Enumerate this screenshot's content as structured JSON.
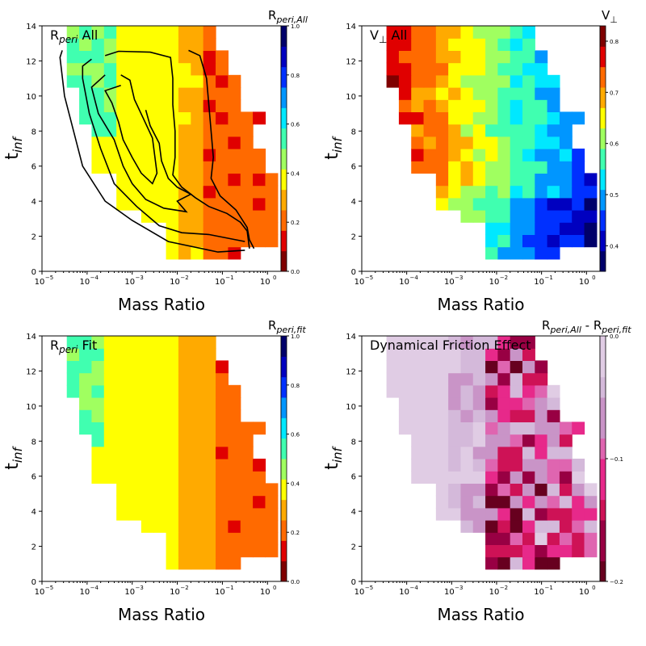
{
  "chart_data": [
    {
      "type": "heatmap",
      "panel": "top-left",
      "title_main": "R",
      "title_sub": "peri",
      "title_suffix": " All",
      "colorbar_label_main": "R",
      "colorbar_label_sub": "peri,All",
      "colorbar_ticks": [
        "0.0",
        "0.2",
        "0.4",
        "0.6",
        "0.8",
        "1.0"
      ],
      "colorbar_range": [
        0,
        1
      ],
      "colormap": "jet",
      "contours": true,
      "xlabel": "Mass Ratio",
      "ylabel_main": "t",
      "ylabel_sub": "inf",
      "x_ticks": [
        "10",
        "10",
        "10",
        "10",
        "10",
        "10"
      ],
      "x_tick_exponents": [
        "−5",
        "−4",
        "−3",
        "−2",
        "−1",
        "0"
      ],
      "y_ticks": [
        "0",
        "2",
        "4",
        "6",
        "8",
        "10",
        "12",
        "14"
      ],
      "x_log_range": [
        -5,
        0.3
      ],
      "y_range": [
        0,
        14
      ]
    },
    {
      "type": "heatmap",
      "panel": "top-right",
      "title_main": "V",
      "title_sub": "⊥",
      "title_suffix": "  All",
      "colorbar_label_main": "V",
      "colorbar_label_sub": "⊥",
      "colorbar_ticks": [
        "0.4",
        "0.5",
        "0.6",
        "0.7",
        "0.8"
      ],
      "colorbar_range": [
        0.35,
        0.83
      ],
      "colormap": "jet_r",
      "contours": false,
      "xlabel": "Mass Ratio",
      "ylabel_main": "t",
      "ylabel_sub": "inf",
      "x_ticks": [
        "10",
        "10",
        "10",
        "10",
        "10",
        "10"
      ],
      "x_tick_exponents": [
        "−5",
        "−4",
        "−3",
        "−2",
        "−1",
        "0"
      ],
      "y_ticks": [
        "0",
        "2",
        "4",
        "6",
        "8",
        "10",
        "12",
        "14"
      ],
      "x_log_range": [
        -5,
        0.3
      ],
      "y_range": [
        0,
        14
      ]
    },
    {
      "type": "heatmap",
      "panel": "bottom-left",
      "title_main": "R",
      "title_sub": "peri",
      "title_suffix": " Fit",
      "colorbar_label_main": "R",
      "colorbar_label_sub": "peri,fit",
      "colorbar_ticks": [
        "0.0",
        "0.2",
        "0.4",
        "0.6",
        "0.8",
        "1.0"
      ],
      "colorbar_range": [
        0,
        1
      ],
      "colormap": "jet",
      "contours": false,
      "xlabel": "Mass Ratio",
      "ylabel_main": "t",
      "ylabel_sub": "inf",
      "x_ticks": [
        "10",
        "10",
        "10",
        "10",
        "10",
        "10"
      ],
      "x_tick_exponents": [
        "−5",
        "−4",
        "−3",
        "−2",
        "−1",
        "0"
      ],
      "y_ticks": [
        "0",
        "2",
        "4",
        "6",
        "8",
        "10",
        "12",
        "14"
      ],
      "x_log_range": [
        -5,
        0.3
      ],
      "y_range": [
        0,
        14
      ]
    },
    {
      "type": "heatmap",
      "panel": "bottom-right",
      "title_main": "Dynamical Friction Effect",
      "title_sub": "",
      "title_suffix": "",
      "colorbar_label_main": "R",
      "colorbar_label_sub": "peri,All",
      "colorbar_label_mid": " - R",
      "colorbar_label_sub2": "peri,fit",
      "colorbar_ticks": [
        "−0.2",
        "−0.1",
        "0.0"
      ],
      "colorbar_range": [
        -0.2,
        0.0
      ],
      "colormap": "PuRd_r",
      "contours": false,
      "xlabel": "Mass Ratio",
      "ylabel_main": "t",
      "ylabel_sub": "inf",
      "x_ticks": [
        "10",
        "10",
        "10",
        "10",
        "10",
        "10"
      ],
      "x_tick_exponents": [
        "−5",
        "−4",
        "−3",
        "−2",
        "−1",
        "0"
      ],
      "y_ticks": [
        "0",
        "2",
        "4",
        "6",
        "8",
        "10",
        "12",
        "14"
      ],
      "x_log_range": [
        -5,
        0.3
      ],
      "y_range": [
        0,
        14
      ]
    }
  ]
}
